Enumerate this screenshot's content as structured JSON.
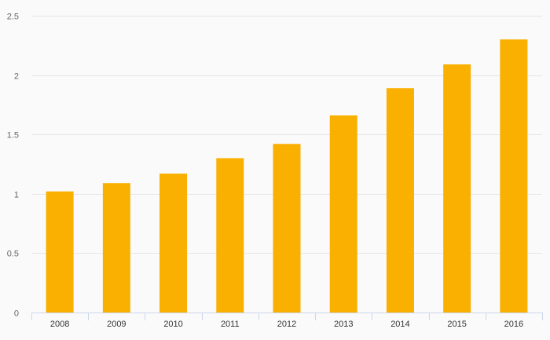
{
  "chart_data": {
    "type": "bar",
    "title": "",
    "xlabel": "",
    "ylabel": "",
    "categories": [
      "2008",
      "2009",
      "2010",
      "2011",
      "2012",
      "2013",
      "2014",
      "2015",
      "2016"
    ],
    "values": [
      1.02,
      1.09,
      1.17,
      1.3,
      1.42,
      1.66,
      1.89,
      2.09,
      2.3
    ],
    "ylim": [
      0,
      2.5
    ],
    "yticks": [
      0,
      0.5,
      1,
      1.5,
      2,
      2.5
    ],
    "ytick_labels": [
      "0",
      "0.5",
      "1",
      "1.5",
      "2",
      "2.5"
    ],
    "grid": true,
    "legend": "none",
    "bar_color": "#f9b000"
  }
}
